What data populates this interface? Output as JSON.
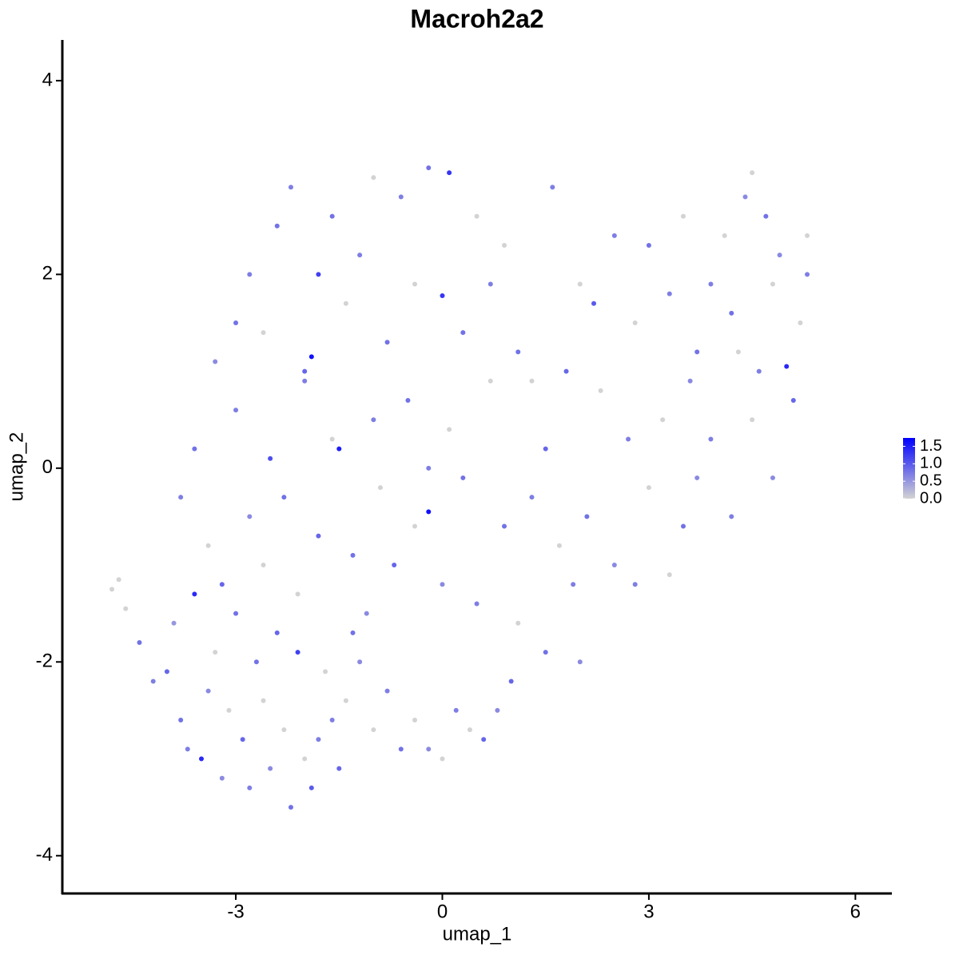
{
  "chart_data": {
    "type": "scatter",
    "title": "Macroh2a2",
    "x_label": "umap_1",
    "y_label": "umap_2",
    "xlim": [
      -5.52,
      6.53
    ],
    "xticks": [
      -3,
      0,
      3,
      6
    ],
    "ylim": [
      -4.39,
      4.42
    ],
    "yticks": [
      -4,
      -2,
      0,
      2,
      4
    ],
    "color_scale": [
      "#d3d3d3",
      "#0000ff"
    ],
    "color_lim": [
      0,
      1.74
    ],
    "color_ticks": [
      {
        "value": 0,
        "label": "0.0"
      },
      {
        "value": 0.5,
        "label": "0.5"
      },
      {
        "value": 1,
        "label": "1.0"
      },
      {
        "value": 1.5,
        "label": "1.5"
      }
    ],
    "x": [
      -4.8,
      -4.7,
      -4.6,
      -4.4,
      -4.2,
      -4.0,
      -3.9,
      -3.8,
      -3.7,
      -3.6,
      -3.5,
      -3.4,
      -3.3,
      -3.2,
      -3.1,
      -3.0,
      -2.9,
      -2.8,
      -2.7,
      -2.6,
      -2.5,
      -2.4,
      -2.3,
      -2.2,
      -2.1,
      -2.0,
      -1.9,
      -1.8,
      -1.7,
      -1.6,
      -1.5,
      -1.4,
      -1.3,
      -1.2,
      -1.0,
      -0.8,
      -0.6,
      -0.4,
      -0.2,
      0.0,
      0.2,
      0.4,
      0.6,
      0.8,
      -3.8,
      -3.6,
      -3.4,
      -3.2,
      -3.0,
      -2.8,
      -2.6,
      -2.5,
      -2.3,
      -2.1,
      -2.0,
      -1.8,
      -1.6,
      -1.5,
      -1.3,
      -1.1,
      -1.0,
      -0.9,
      -0.7,
      -0.5,
      -0.4,
      -0.2,
      -0.2,
      0.0,
      0.1,
      0.3,
      0.5,
      0.7,
      0.9,
      1.1,
      1.3,
      1.5,
      1.7,
      1.9,
      2.1,
      2.3,
      2.5,
      2.8,
      3.0,
      3.3,
      3.5,
      3.7,
      3.9,
      4.2,
      4.5,
      4.8,
      1.5,
      2.0,
      1.0,
      -3.3,
      -3.0,
      -2.8,
      -2.6,
      -2.4,
      -2.2,
      -2.0,
      -1.9,
      -1.8,
      -1.6,
      -1.4,
      -1.2,
      -1.0,
      -0.8,
      -0.6,
      -0.4,
      -0.2,
      0.0,
      0.1,
      0.3,
      0.5,
      0.7,
      0.9,
      1.1,
      1.3,
      1.6,
      1.8,
      2.0,
      2.2,
      2.5,
      2.8,
      3.0,
      3.3,
      3.5,
      3.7,
      3.9,
      4.1,
      4.2,
      4.4,
      4.5,
      4.6,
      4.7,
      4.8,
      4.9,
      5.0,
      5.1,
      5.2,
      5.3,
      5.3,
      4.3,
      3.6,
      3.2,
      2.7
    ],
    "values": [
      -1.25,
      -1.15,
      -1.45,
      -1.8,
      -2.2,
      -2.1,
      -1.6,
      -2.6,
      -2.9,
      -1.3,
      -3.0,
      -2.3,
      -1.9,
      -3.2,
      -2.5,
      -1.5,
      -2.8,
      -3.3,
      -2.0,
      -2.4,
      -3.1,
      -1.7,
      -2.7,
      -3.5,
      -1.9,
      -3.0,
      -3.3,
      -2.8,
      -2.1,
      -2.6,
      -3.1,
      -2.4,
      -1.7,
      -2.0,
      -2.7,
      -2.3,
      -2.9,
      -2.6,
      -2.9,
      -3.0,
      -2.5,
      -2.7,
      -2.8,
      -2.5,
      -0.3,
      0.2,
      -0.8,
      -1.2,
      0.6,
      -0.5,
      -1.0,
      0.1,
      -0.3,
      -1.3,
      0.9,
      -0.7,
      0.3,
      0.2,
      -0.9,
      -1.5,
      0.5,
      -0.2,
      -1.0,
      0.7,
      -0.6,
      0.0,
      -0.45,
      -1.2,
      0.4,
      -0.1,
      -1.4,
      0.9,
      -0.6,
      -1.6,
      -0.3,
      0.2,
      -0.8,
      -1.2,
      -0.5,
      0.8,
      -1.0,
      -1.2,
      -0.2,
      -1.1,
      -0.6,
      -0.1,
      0.3,
      -0.5,
      0.5,
      -0.1,
      -1.9,
      -2.0,
      -2.2,
      1.1,
      1.5,
      2.0,
      1.4,
      2.5,
      2.9,
      1.0,
      1.15,
      2.0,
      2.6,
      1.7,
      2.2,
      3.0,
      1.3,
      2.8,
      1.9,
      3.1,
      1.78,
      3.05,
      1.4,
      2.6,
      1.9,
      2.3,
      1.2,
      0.9,
      2.9,
      1.0,
      1.9,
      1.7,
      2.4,
      1.5,
      2.3,
      1.8,
      2.6,
      1.2,
      1.9,
      2.4,
      1.6,
      2.8,
      3.05,
      1.0,
      2.6,
      1.9,
      2.2,
      1.05,
      0.7,
      1.5,
      2.4,
      2.0,
      1.2,
      0.9,
      0.5,
      0.3
    ],
    "color_values": [
      0,
      0,
      0,
      0.8,
      0.7,
      0.9,
      0.5,
      0.8,
      0.7,
      1.4,
      1.4,
      0.6,
      0,
      0.6,
      0,
      0.8,
      0.9,
      0.7,
      0.8,
      0,
      0.6,
      0.9,
      0,
      0.8,
      1.2,
      0,
      1.0,
      0.7,
      0,
      0.7,
      0.9,
      0,
      0.8,
      0.6,
      0,
      0.7,
      0.8,
      0,
      0.6,
      0,
      0.7,
      0,
      0.9,
      0.6,
      0.7,
      0.8,
      0,
      0.9,
      0.7,
      0.6,
      0,
      1.1,
      0.8,
      0,
      0.7,
      0.9,
      0,
      1.5,
      0.8,
      0.6,
      0.7,
      0,
      0.9,
      0.8,
      0,
      0.7,
      1.6,
      0.6,
      0,
      0.8,
      0.7,
      0,
      0.8,
      0,
      0.7,
      0.9,
      0,
      0.7,
      0.8,
      0,
      0.6,
      0.7,
      0,
      0,
      0.8,
      0.6,
      0.7,
      0.7,
      0,
      0.6,
      0.8,
      0.6,
      0.9,
      0.6,
      0.8,
      0.7,
      0,
      0.8,
      0.7,
      0.9,
      1.6,
      1.2,
      0.8,
      0,
      0.7,
      0,
      0.8,
      0.7,
      0,
      0.8,
      1.3,
      1.3,
      0.8,
      0,
      0.7,
      0,
      0.8,
      0,
      0.7,
      0.9,
      0,
      1.0,
      0.7,
      0,
      0.8,
      0.7,
      0,
      0.8,
      0.7,
      0,
      0.8,
      0.6,
      0,
      0.7,
      0.8,
      0,
      0.6,
      1.4,
      0.9,
      0,
      0,
      0.7,
      0,
      0.6,
      0,
      0.7
    ]
  }
}
